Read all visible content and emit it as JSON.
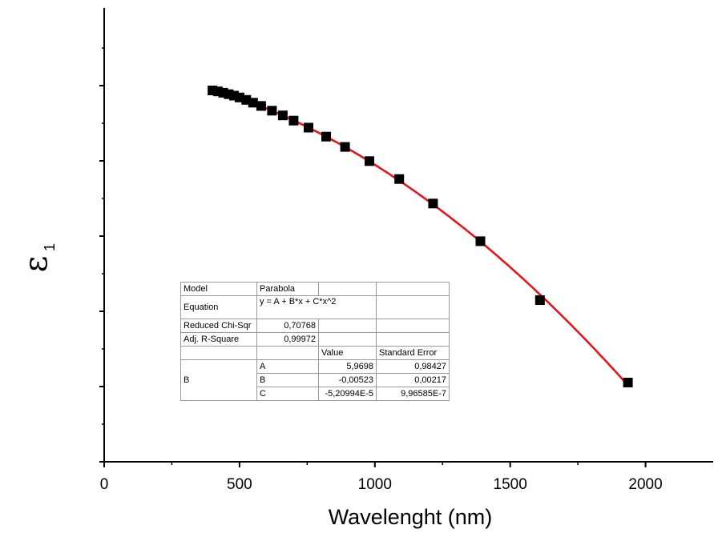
{
  "chart_data": {
    "type": "scatter",
    "xlabel": "Wavelenght (nm)",
    "ylabel_symbol": "ε",
    "ylabel_subscript": "1",
    "xlim": [
      0,
      2250
    ],
    "xticks": [
      "0",
      "500",
      "1000",
      "1500",
      "2000"
    ],
    "y_tick_count": 6,
    "y_tick_labels_shown": false,
    "grid": false,
    "series": [
      {
        "kind": "points",
        "marker": "square",
        "color": "#000000",
        "x": [
          400,
          420,
          440,
          460,
          480,
          500,
          525,
          550,
          580,
          620,
          660,
          700,
          755,
          820,
          890,
          980,
          1090,
          1215,
          1390,
          1610,
          1935
        ],
        "y": [
          0,
          -0.02,
          -0.05,
          -0.08,
          -0.11,
          -0.15,
          -0.2,
          -0.26,
          -0.33,
          -0.43,
          -0.53,
          -0.64,
          -0.79,
          -0.98,
          -1.2,
          -1.5,
          -1.88,
          -2.4,
          -3.2,
          -4.45,
          -6.2
        ]
      },
      {
        "kind": "fit",
        "color": "#e8141b",
        "x_range": [
          390,
          1940
        ]
      }
    ]
  },
  "fit_table": {
    "model_label": "Model",
    "model_value": "Parabola",
    "equation_label": "Equation",
    "equation_value": "y = A + B*x + C*x^2",
    "chi_label": "Reduced Chi-Sqr",
    "chi_value": "0,70768",
    "r2_label": "Adj. R-Square",
    "r2_value": "0,99972",
    "value_header": "Value",
    "error_header": "Standard Error",
    "group_label": "B",
    "params": [
      {
        "name": "A",
        "value": "5,9698",
        "error": "0,98427"
      },
      {
        "name": "B",
        "value": "-0,00523",
        "error": "0,00217"
      },
      {
        "name": "C",
        "value": "-5,20994E-5",
        "error": "9,96585E-7"
      }
    ]
  }
}
